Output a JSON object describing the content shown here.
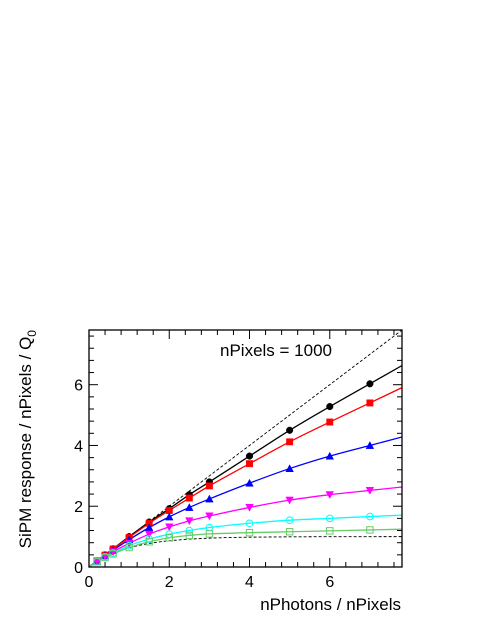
{
  "chart_data": {
    "type": "scatter",
    "title": "",
    "xlabel": "nPhotons / nPixels",
    "ylabel": "SiPM response / nPixels / Q",
    "ylabel_subscript": "0",
    "annotation": "nPixels = 1000",
    "xlim": [
      0,
      7.8
    ],
    "ylim": [
      0,
      7.8
    ],
    "xticks": [
      0,
      2,
      4,
      6
    ],
    "yticks": [
      0,
      2,
      4,
      6
    ],
    "xtick_labels": [
      "0",
      "2",
      "4",
      "6"
    ],
    "ytick_labels": [
      "0",
      "2",
      "4",
      "6"
    ],
    "grid": false,
    "x": [
      0.2,
      0.4,
      0.6,
      1.0,
      1.5,
      2.0,
      2.5,
      3.0,
      4.0,
      5.0,
      6.0,
      7.0
    ],
    "series": [
      {
        "color": "#000000",
        "marker": "circle-filled",
        "values": [
          0.2,
          0.4,
          0.6,
          1.0,
          1.48,
          1.92,
          2.38,
          2.8,
          3.65,
          4.5,
          5.28,
          6.03
        ]
      },
      {
        "color": "#ff0000",
        "marker": "square-filled",
        "values": [
          0.2,
          0.39,
          0.59,
          0.97,
          1.44,
          1.86,
          2.27,
          2.67,
          3.4,
          4.12,
          4.77,
          5.4
        ]
      },
      {
        "color": "#0000ff",
        "marker": "triangle-up-filled",
        "values": [
          0.19,
          0.37,
          0.55,
          0.9,
          1.3,
          1.65,
          1.96,
          2.24,
          2.76,
          3.24,
          3.65,
          4.0
        ]
      },
      {
        "color": "#ff00ff",
        "marker": "triangle-down-filled",
        "values": [
          0.18,
          0.35,
          0.5,
          0.78,
          1.08,
          1.32,
          1.52,
          1.68,
          1.96,
          2.2,
          2.38,
          2.52
        ]
      },
      {
        "color": "#00ffff",
        "marker": "circle-open",
        "values": [
          0.18,
          0.33,
          0.46,
          0.7,
          0.92,
          1.08,
          1.2,
          1.3,
          1.44,
          1.54,
          1.6,
          1.66
        ]
      },
      {
        "color": "#66cc66",
        "marker": "square-open",
        "values": [
          0.17,
          0.31,
          0.43,
          0.64,
          0.83,
          0.96,
          1.04,
          1.09,
          1.13,
          1.16,
          1.19,
          1.22
        ]
      }
    ],
    "reference_lines": [
      {
        "color": "#000000",
        "style": "dashed",
        "x": [
          0,
          7.8
        ],
        "y": [
          0,
          7.8
        ]
      },
      {
        "color": "#000000",
        "style": "dashed",
        "x": [
          0,
          0.2,
          0.4,
          0.6,
          0.8,
          1.0,
          1.25,
          1.5,
          1.75,
          2.0,
          2.5,
          3.0,
          3.5,
          4.0,
          5.0,
          6.0,
          7.0,
          7.8
        ],
        "y": [
          0,
          0.181,
          0.33,
          0.451,
          0.551,
          0.632,
          0.713,
          0.777,
          0.826,
          0.865,
          0.918,
          0.95,
          0.97,
          0.982,
          0.993,
          0.998,
          0.999,
          1.0
        ]
      }
    ]
  }
}
